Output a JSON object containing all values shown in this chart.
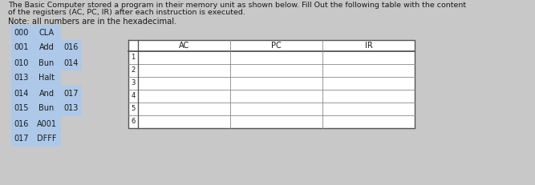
{
  "title_line1": "The Basic Computer stored a program in their memory unit as shown below. Fill Out the following table with the content",
  "title_line2": "of the registers (AC, PC, IR) after each instruction is executed.",
  "note": "Note: all numbers are in the hexadecimal.",
  "memory_rows": [
    [
      "000",
      "CLA",
      ""
    ],
    [
      "001",
      "Add",
      "016"
    ],
    [
      "010",
      "Bun",
      "014"
    ],
    [
      "013",
      "Halt",
      ""
    ],
    [
      "014",
      "And",
      "017"
    ],
    [
      "015",
      "Bun",
      "013"
    ],
    [
      "016",
      "A001",
      ""
    ],
    [
      "017",
      "DFFF",
      ""
    ]
  ],
  "table_headers": [
    "AC",
    "PC",
    "IR"
  ],
  "table_row_labels": [
    "1",
    "2",
    "3",
    "4",
    "5",
    "6"
  ],
  "memory_bg_color": "#adc8e8",
  "bg_color": "#c8c8c8",
  "text_color": "#1a1a1a",
  "font_size_title": 6.8,
  "font_size_body": 7.0,
  "font_size_note": 7.2
}
